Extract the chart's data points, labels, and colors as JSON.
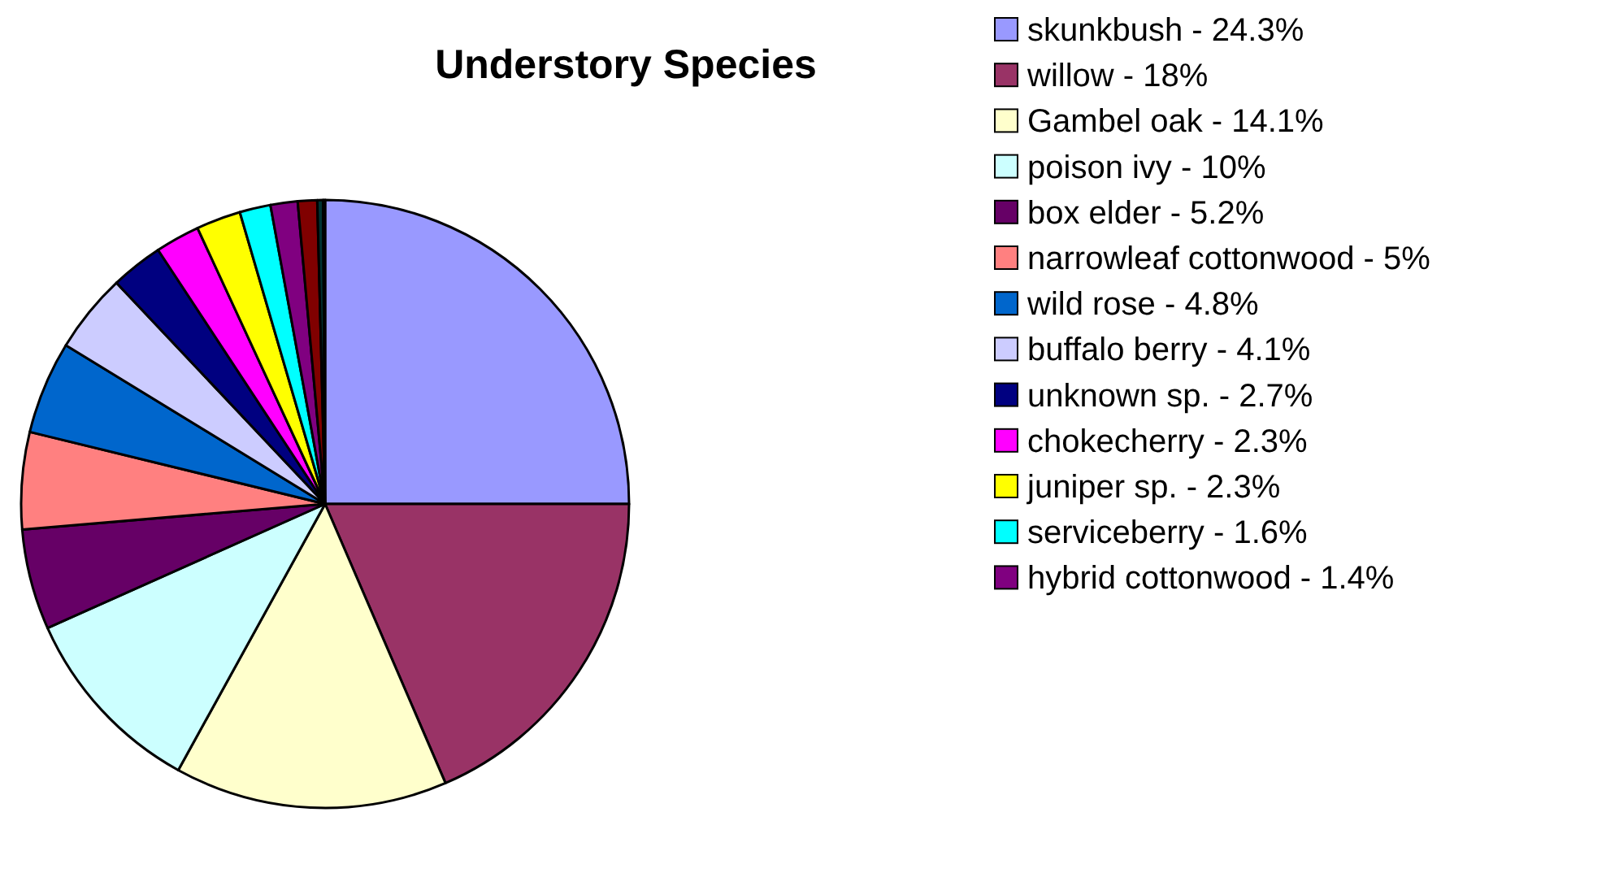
{
  "chart_data": {
    "type": "pie",
    "title": "Understory Species",
    "categories": [
      "skunkbush - 24.3%",
      "willow - 18%",
      "Gambel oak - 14.1%",
      "poison ivy - 10%",
      "box elder - 5.2%",
      "narrowleaf cottonwood - 5%",
      "wild rose - 4.8%",
      "buffalo berry - 4.1%",
      "unknown sp. - 2.7%",
      "chokecherry - 2.3%",
      "juniper sp. - 2.3%",
      "serviceberry - 1.6%",
      "hybrid cottonwood - 1.4%",
      null,
      null,
      null
    ],
    "values": [
      24.3,
      18,
      14.1,
      10,
      5.2,
      5,
      4.8,
      4.1,
      2.7,
      2.3,
      2.3,
      1.6,
      1.4,
      1.0,
      0.3,
      0.1
    ],
    "colors": [
      "#9999ff",
      "#993366",
      "#ffffcc",
      "#ccffff",
      "#660066",
      "#ff8080",
      "#0066cc",
      "#ccccff",
      "#000080",
      "#ff00ff",
      "#ffff00",
      "#00ffff",
      "#800080",
      "#800000",
      "#003333",
      "#99cccc"
    ],
    "legend": "right"
  }
}
